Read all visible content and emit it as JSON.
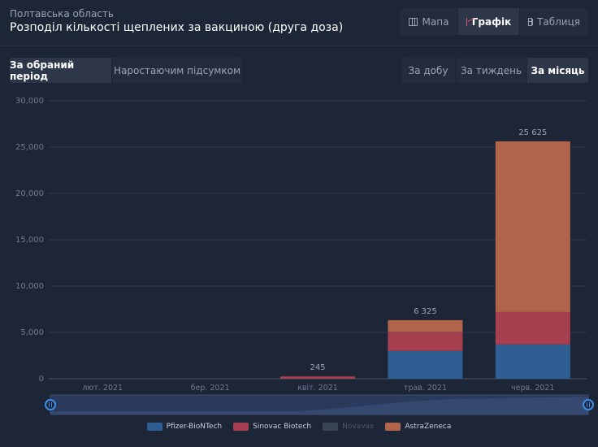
{
  "header": {
    "region": "Полтавська область",
    "title": "Розподіл кількості щеплених за вакциною (друга доза)"
  },
  "view_tabs": [
    {
      "label": "Мапа",
      "icon": "map-icon",
      "active": false
    },
    {
      "label": "Графік",
      "icon": "chart-icon",
      "active": true
    },
    {
      "label": "Таблиця",
      "icon": "table-icon",
      "active": false
    }
  ],
  "period_tabs": [
    {
      "label": "За обраний період",
      "active": true
    },
    {
      "label": "Наростаючим підсумком",
      "active": false
    }
  ],
  "granularity_tabs": [
    {
      "label": "За добу",
      "active": false
    },
    {
      "label": "За тиждень",
      "active": false
    },
    {
      "label": "За місяць",
      "active": true
    }
  ],
  "chart_data": {
    "type": "bar",
    "stacked": true,
    "categories": [
      "лют. 2021",
      "бер. 2021",
      "квіт. 2021",
      "трав. 2021",
      "черв. 2021"
    ],
    "series": [
      {
        "name": "Pfizer-BioNTech",
        "color": "#2f5f92",
        "values": [
          0,
          0,
          0,
          3000,
          3700
        ],
        "visible": true
      },
      {
        "name": "Sinovac Biotech",
        "color": "#a63f4f",
        "values": [
          0,
          0,
          245,
          2075,
          3500
        ],
        "visible": true
      },
      {
        "name": "Novavax",
        "color": "#3a4457",
        "values": [
          0,
          0,
          0,
          0,
          0
        ],
        "visible": false
      },
      {
        "name": "AstraZeneca",
        "color": "#b0654a",
        "values": [
          0,
          0,
          0,
          1250,
          18425
        ],
        "visible": true
      }
    ],
    "totals": [
      "",
      "",
      "245",
      "6 325",
      "25 625"
    ],
    "y_ticks": [
      "0",
      "5,000",
      "10,000",
      "15,000",
      "20,000",
      "25,000",
      "30,000"
    ],
    "ylim": [
      0,
      30000
    ],
    "grid": true,
    "legend_position": "bottom-center"
  }
}
